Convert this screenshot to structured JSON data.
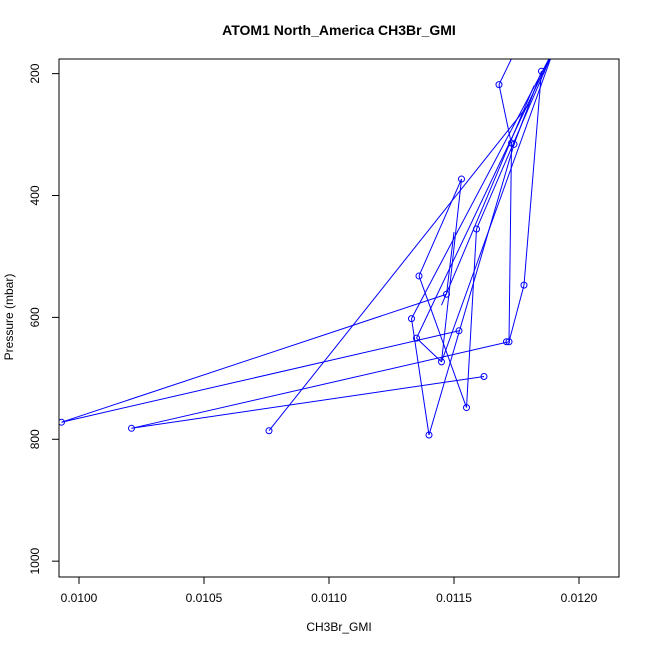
{
  "chart_data": {
    "type": "line",
    "title": "ATOM1 North_America CH3Br_GMI",
    "xlabel": "CH3Br_GMI",
    "ylabel": "Pressure (mbar)",
    "xlim": [
      0.00992,
      0.01216
    ],
    "ylim": [
      1026,
      176
    ],
    "y_reversed": true,
    "grid": false,
    "xticks": [
      0.01,
      0.0105,
      0.011,
      0.0115,
      0.012
    ],
    "xtick_labels": [
      "0.0100",
      "0.0105",
      "0.0110",
      "0.0115",
      "0.0120"
    ],
    "yticks": [
      200,
      400,
      600,
      800,
      1000
    ],
    "ytick_labels": [
      "200",
      "400",
      "600",
      "800",
      "1000"
    ],
    "series": [
      {
        "color": "#0000ff",
        "marker": "open-circle",
        "line_start": {
          "x": 0.01176,
          "y": 150
        },
        "points": [
          {
            "x": 0.01168,
            "y": 218
          },
          {
            "x": 0.01185,
            "y": 196
          },
          {
            "x": 0.01173,
            "y": 314
          },
          {
            "x": 0.01174,
            "y": 316
          },
          {
            "x": 0.01153,
            "y": 373
          },
          {
            "x": 0.01159,
            "y": 455
          },
          {
            "x": 0.01136,
            "y": 532
          },
          {
            "x": 0.01178,
            "y": 547
          },
          {
            "x": 0.01147,
            "y": 562
          },
          {
            "x": 0.01133,
            "y": 602
          },
          {
            "x": 0.01152,
            "y": 622
          },
          {
            "x": 0.01135,
            "y": 634
          },
          {
            "x": 0.01171,
            "y": 640
          },
          {
            "x": 0.01172,
            "y": 640
          },
          {
            "x": 0.01145,
            "y": 673
          },
          {
            "x": 0.01162,
            "y": 697
          },
          {
            "x": 0.01155,
            "y": 748
          },
          {
            "x": 0.00993,
            "y": 772
          },
          {
            "x": 0.01021,
            "y": 782
          },
          {
            "x": 0.01076,
            "y": 786
          },
          {
            "x": 0.0114,
            "y": 793
          }
        ],
        "segments": [
          [
            [
              0.01168,
              218
            ],
            [
              0.01173,
              316
            ]
          ],
          [
            [
              0.01173,
              316
            ],
            [
              0.01172,
              640
            ]
          ],
          [
            [
              0.01168,
              218
            ],
            [
              0.01176,
              150
            ]
          ],
          [
            [
              0.01185,
              196
            ],
            [
              0.01178,
              547
            ]
          ],
          [
            [
              0.01185,
              196
            ],
            [
              0.01174,
              316
            ]
          ],
          [
            [
              0.01174,
              316
            ],
            [
              0.0114,
              793
            ]
          ],
          [
            [
              0.0114,
              793
            ],
            [
              0.01133,
              602
            ]
          ],
          [
            [
              0.01133,
              602
            ],
            [
              0.0119,
              160
            ]
          ],
          [
            [
              0.01153,
              373
            ],
            [
              0.01136,
              532
            ]
          ],
          [
            [
              0.01136,
              532
            ],
            [
              0.01155,
              748
            ]
          ],
          [
            [
              0.01155,
              748
            ],
            [
              0.01159,
              455
            ]
          ],
          [
            [
              0.01159,
              455
            ],
            [
              0.0119,
              160
            ]
          ],
          [
            [
              0.01147,
              562
            ],
            [
              0.0115,
              460
            ]
          ],
          [
            [
              0.01147,
              562
            ],
            [
              0.00993,
              772
            ]
          ],
          [
            [
              0.00993,
              772
            ],
            [
              0.01152,
              622
            ]
          ],
          [
            [
              0.01021,
              782
            ],
            [
              0.01172,
              640
            ]
          ],
          [
            [
              0.01021,
              782
            ],
            [
              0.01162,
              697
            ]
          ],
          [
            [
              0.01076,
              786
            ],
            [
              0.0118,
              250
            ]
          ],
          [
            [
              0.01135,
              634
            ],
            [
              0.01145,
              673
            ]
          ],
          [
            [
              0.01145,
              673
            ],
            [
              0.0119,
              160
            ]
          ],
          [
            [
              0.01178,
              547
            ],
            [
              0.01172,
              640
            ]
          ],
          [
            [
              0.01153,
              373
            ],
            [
              0.01145,
              673
            ]
          ],
          [
            [
              0.01135,
              634
            ],
            [
              0.0119,
              160
            ]
          ],
          [
            [
              0.01145,
              580
            ],
            [
              0.01182,
              220
            ]
          ]
        ]
      }
    ]
  }
}
